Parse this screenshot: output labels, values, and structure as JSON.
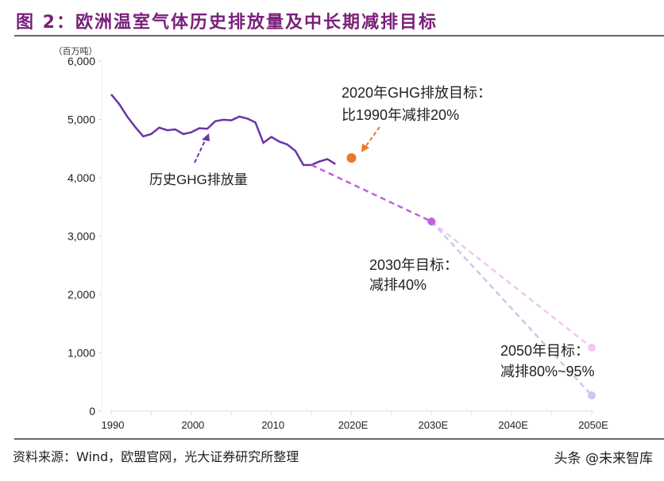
{
  "title": "图 2：欧洲温室气体历史排放量及中长期减排目标",
  "source": "资料来源：Wind，欧盟官网，光大证券研究所整理",
  "watermark": "头条 @未来智库",
  "chart_data": {
    "type": "line",
    "unit_label": "（百万吨）",
    "ylim": [
      0,
      6000
    ],
    "yticks": [
      "0",
      "1,000",
      "2,000",
      "3,000",
      "4,000",
      "5,000",
      "6,000"
    ],
    "ytick_values": [
      0,
      1000,
      2000,
      3000,
      4000,
      5000,
      6000
    ],
    "xlim": [
      1990,
      2050
    ],
    "xticks": [
      "1990",
      "2000",
      "2010",
      "2020E",
      "2030E",
      "2040E",
      "2050E"
    ],
    "xtick_values": [
      1990,
      2000,
      2010,
      2020,
      2030,
      2040,
      2050
    ],
    "colors": {
      "history": "#6a35a8",
      "target2020": "#e87a2a",
      "target2030": "#c060e0",
      "target2050_low": "#c8c8f0",
      "target2050_high": "#f0c8f0"
    },
    "series": [
      {
        "name": "历史GHG排放量",
        "x": [
          1990,
          1991,
          1992,
          1993,
          1994,
          1995,
          1996,
          1997,
          1998,
          1999,
          2000,
          2001,
          2002,
          2003,
          2004,
          2005,
          2006,
          2007,
          2008,
          2009,
          2010,
          2011,
          2012,
          2013,
          2014,
          2015,
          2016,
          2017,
          2018
        ],
        "y": [
          5430,
          5265,
          5050,
          4870,
          4710,
          4750,
          4860,
          4815,
          4830,
          4750,
          4780,
          4850,
          4840,
          4970,
          4995,
          4985,
          5050,
          5015,
          4950,
          4600,
          4700,
          4620,
          4570,
          4460,
          4220,
          4220,
          4280,
          4320,
          4235
        ]
      }
    ],
    "targets": [
      {
        "year": 2020,
        "value": 4340,
        "label_line1": "2020年GHG排放目标：",
        "label_line2": "比1990年减排20%"
      },
      {
        "year": 2030,
        "value": 3250,
        "label_line1": "2030年目标：",
        "label_line2": "减排40%"
      },
      {
        "year": 2050,
        "value_low": 270,
        "value_high": 1090,
        "label_line1": "2050年目标：",
        "label_line2": "减排80%~95%"
      }
    ],
    "grid": false
  }
}
